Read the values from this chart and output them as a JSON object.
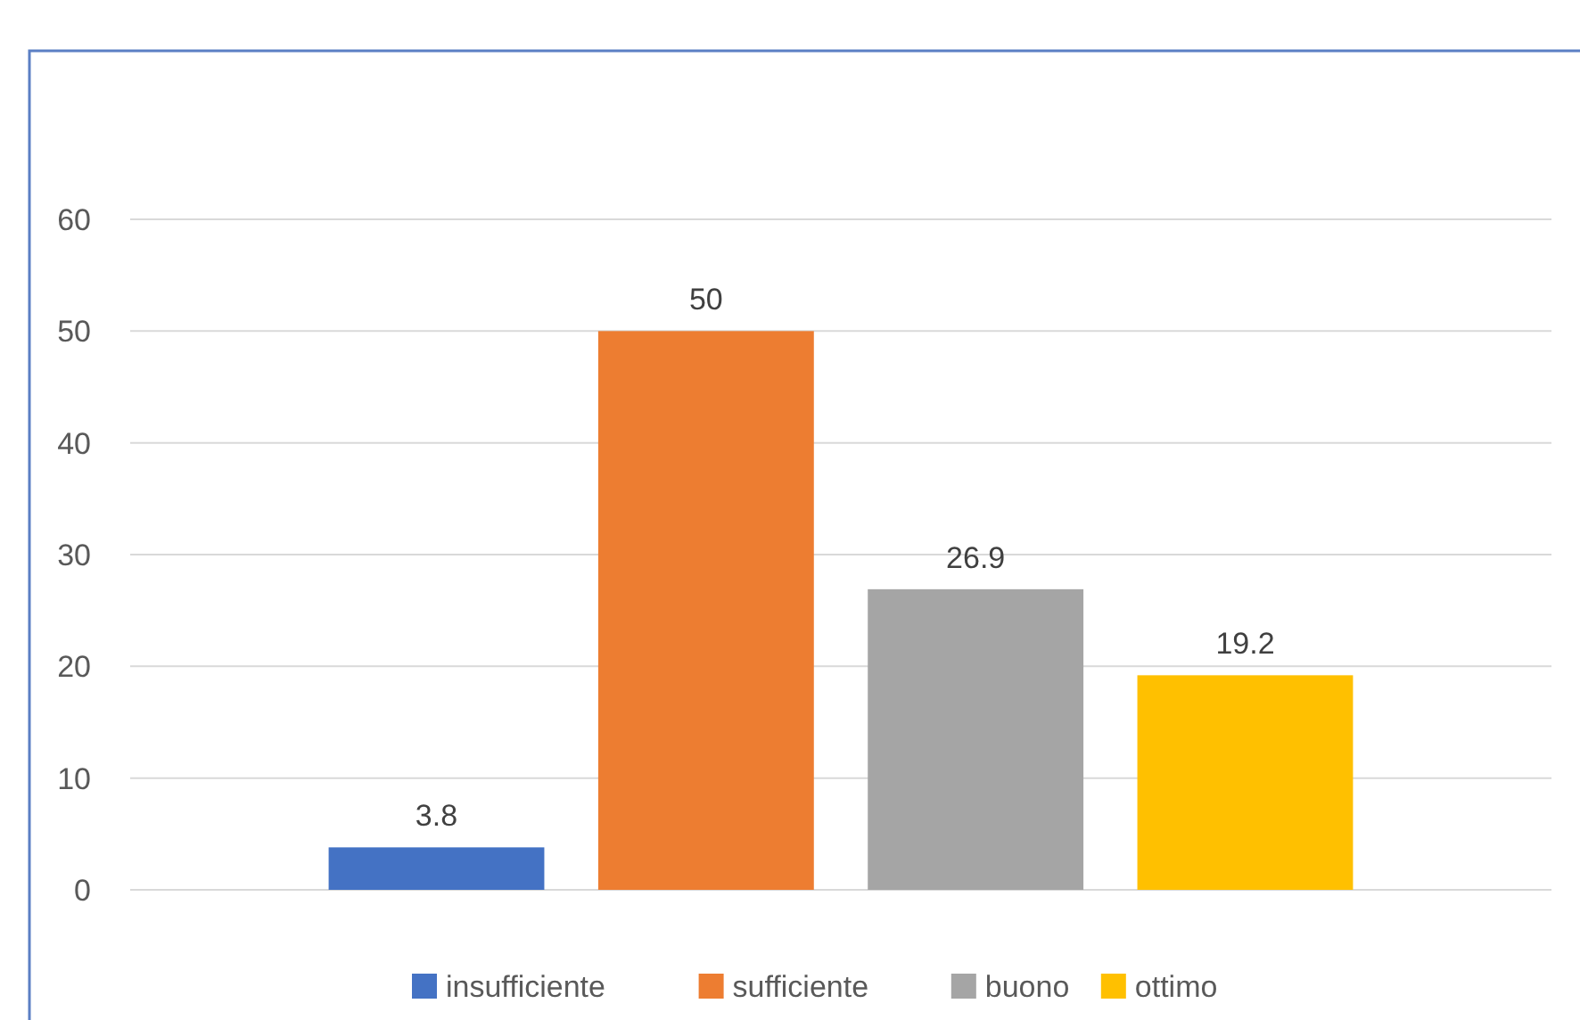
{
  "chart_data": {
    "type": "bar",
    "categories": [
      null
    ],
    "series": [
      {
        "name": "insufficiente",
        "color": "#4472c4",
        "values": [
          3.8
        ]
      },
      {
        "name": "sufficiente",
        "color": "#ed7d31",
        "values": [
          50
        ]
      },
      {
        "name": "buono",
        "color": "#a5a5a5",
        "values": [
          26.9
        ]
      },
      {
        "name": "ottimo",
        "color": "#ffc000",
        "values": [
          19.2
        ]
      }
    ],
    "ylim": [
      0,
      60
    ],
    "yticks": [
      0,
      10,
      20,
      30,
      40,
      50,
      60
    ],
    "grid": "y",
    "legend": "bottom",
    "data_labels": true
  }
}
